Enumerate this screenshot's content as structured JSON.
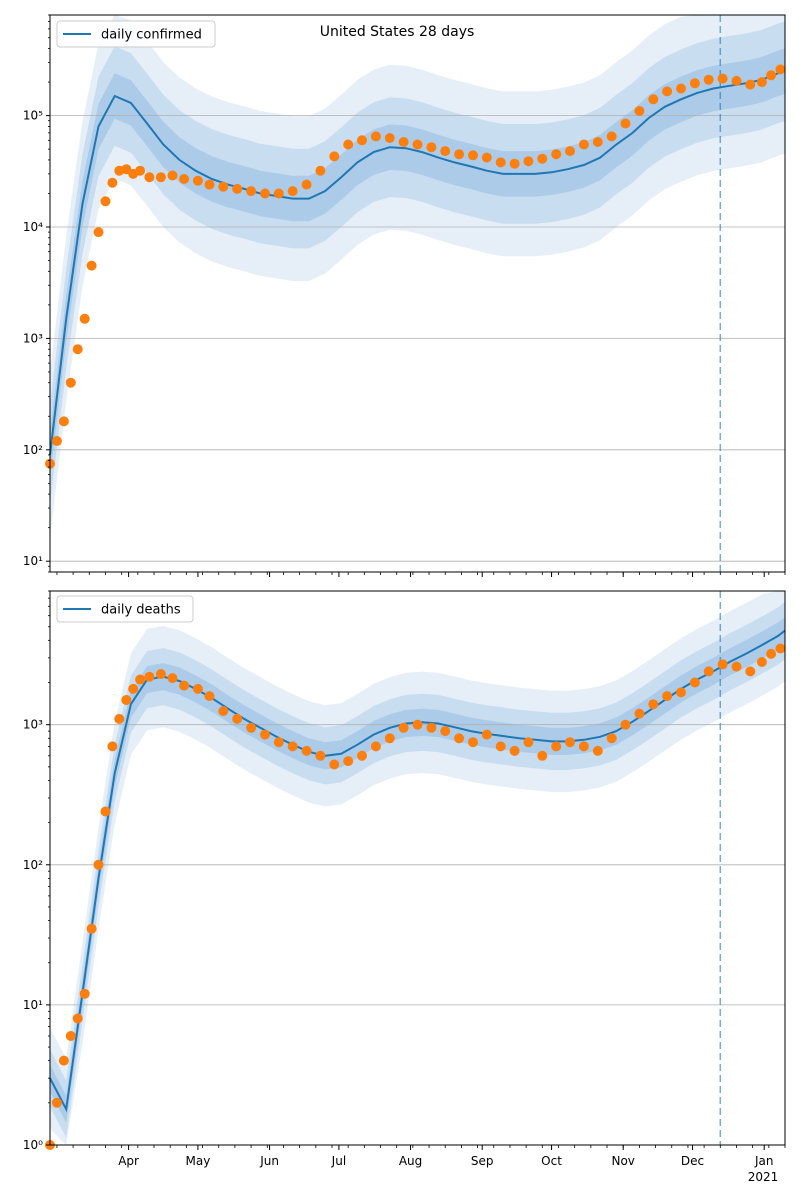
{
  "chart_data": [
    {
      "type": "line",
      "title": "United States 28 days",
      "xlabel": "",
      "ylabel": "",
      "yscale": "log",
      "ylim": [
        8,
        800000
      ],
      "yticks": [
        {
          "value": 10,
          "label": "10¹"
        },
        {
          "value": 100,
          "label": "10²"
        },
        {
          "value": 1000,
          "label": "10³"
        },
        {
          "value": 10000,
          "label": "10⁴"
        },
        {
          "value": 100000,
          "label": "10⁵"
        }
      ],
      "grid": "horizontal",
      "legend": {
        "placement": "top-left",
        "entries": [
          "daily confirmed"
        ]
      },
      "forecast_start": "2020-12-13",
      "series": [
        {
          "name": "daily confirmed",
          "kind": "model-median",
          "color": "#1f77b4",
          "x": [
            "2020-02-27",
            "2020-03-05",
            "2020-03-12",
            "2020-03-19",
            "2020-03-26",
            "2020-04-02",
            "2020-04-09",
            "2020-04-16",
            "2020-04-23",
            "2020-04-30",
            "2020-05-07",
            "2020-05-14",
            "2020-05-21",
            "2020-05-28",
            "2020-06-04",
            "2020-06-11",
            "2020-06-18",
            "2020-06-25",
            "2020-07-02",
            "2020-07-09",
            "2020-07-16",
            "2020-07-23",
            "2020-07-30",
            "2020-08-06",
            "2020-08-13",
            "2020-08-20",
            "2020-08-27",
            "2020-09-03",
            "2020-09-10",
            "2020-09-17",
            "2020-09-24",
            "2020-10-01",
            "2020-10-08",
            "2020-10-15",
            "2020-10-22",
            "2020-10-29",
            "2020-11-05",
            "2020-11-12",
            "2020-11-19",
            "2020-11-26",
            "2020-12-03",
            "2020-12-10",
            "2020-12-17",
            "2020-12-24",
            "2020-12-31",
            "2021-01-07",
            "2021-01-10"
          ],
          "y": [
            90,
            1500,
            16000,
            80000,
            150000,
            130000,
            85000,
            55000,
            40000,
            32000,
            27000,
            24000,
            22000,
            20000,
            19000,
            18000,
            18000,
            21000,
            28000,
            38000,
            47000,
            52000,
            51000,
            47000,
            42000,
            38000,
            35000,
            32000,
            30000,
            30000,
            30000,
            31000,
            33000,
            36000,
            42000,
            55000,
            70000,
            95000,
            120000,
            140000,
            160000,
            175000,
            185000,
            195000,
            210000,
            240000,
            250000
          ]
        },
        {
          "name": "",
          "kind": "observed",
          "color": "#ff7f0e",
          "x": [
            "2020-02-27",
            "2020-03-01",
            "2020-03-04",
            "2020-03-07",
            "2020-03-10",
            "2020-03-13",
            "2020-03-16",
            "2020-03-19",
            "2020-03-22",
            "2020-03-25",
            "2020-03-28",
            "2020-03-31",
            "2020-04-03",
            "2020-04-06",
            "2020-04-10",
            "2020-04-15",
            "2020-04-20",
            "2020-04-25",
            "2020-05-01",
            "2020-05-06",
            "2020-05-12",
            "2020-05-18",
            "2020-05-24",
            "2020-05-30",
            "2020-06-05",
            "2020-06-11",
            "2020-06-17",
            "2020-06-23",
            "2020-06-29",
            "2020-07-05",
            "2020-07-11",
            "2020-07-17",
            "2020-07-23",
            "2020-07-29",
            "2020-08-04",
            "2020-08-10",
            "2020-08-16",
            "2020-08-22",
            "2020-08-28",
            "2020-09-03",
            "2020-09-09",
            "2020-09-15",
            "2020-09-21",
            "2020-09-27",
            "2020-10-03",
            "2020-10-09",
            "2020-10-15",
            "2020-10-21",
            "2020-10-27",
            "2020-11-02",
            "2020-11-08",
            "2020-11-14",
            "2020-11-20",
            "2020-11-26",
            "2020-12-02",
            "2020-12-08",
            "2020-12-14",
            "2020-12-20",
            "2020-12-26",
            "2020-12-31",
            "2021-01-04",
            "2021-01-08"
          ],
          "y": [
            75,
            120,
            180,
            400,
            800,
            1500,
            4500,
            9000,
            17000,
            25000,
            32000,
            33000,
            30000,
            32000,
            28000,
            28000,
            29000,
            27000,
            26000,
            24000,
            23000,
            22000,
            21000,
            20000,
            20000,
            21000,
            24000,
            32000,
            43000,
            55000,
            60000,
            65000,
            63000,
            58000,
            55000,
            52000,
            48000,
            45000,
            44000,
            42000,
            38000,
            37000,
            39000,
            41000,
            45000,
            48000,
            55000,
            58000,
            65000,
            85000,
            110000,
            140000,
            165000,
            175000,
            195000,
            210000,
            215000,
            205000,
            190000,
            200000,
            230000,
            260000
          ]
        }
      ]
    },
    {
      "type": "line",
      "title": "",
      "xlabel": "",
      "ylabel": "",
      "yscale": "log",
      "ylim": [
        1,
        9000
      ],
      "yticks": [
        {
          "value": 1,
          "label": "10⁰"
        },
        {
          "value": 10,
          "label": "10¹"
        },
        {
          "value": 100,
          "label": "10²"
        },
        {
          "value": 1000,
          "label": "10³"
        }
      ],
      "xticks": [
        {
          "date": "2020-04-01",
          "label": "Apr"
        },
        {
          "date": "2020-05-01",
          "label": "May"
        },
        {
          "date": "2020-06-01",
          "label": "Jun"
        },
        {
          "date": "2020-07-01",
          "label": "Jul"
        },
        {
          "date": "2020-08-01",
          "label": "Aug"
        },
        {
          "date": "2020-09-01",
          "label": "Sep"
        },
        {
          "date": "2020-10-01",
          "label": "Oct"
        },
        {
          "date": "2020-11-01",
          "label": "Nov"
        },
        {
          "date": "2020-12-01",
          "label": "Dec"
        },
        {
          "date": "2021-01-01",
          "label": "Jan"
        }
      ],
      "x_year_label": "2021",
      "grid": "horizontal",
      "legend": {
        "placement": "top-left",
        "entries": [
          "daily deaths"
        ]
      },
      "forecast_start": "2020-12-13",
      "series": [
        {
          "name": "daily deaths",
          "kind": "model-median",
          "color": "#1f77b4",
          "x": [
            "2020-02-27",
            "2020-03-05",
            "2020-03-12",
            "2020-03-19",
            "2020-03-26",
            "2020-04-02",
            "2020-04-09",
            "2020-04-16",
            "2020-04-23",
            "2020-04-30",
            "2020-05-07",
            "2020-05-14",
            "2020-05-21",
            "2020-05-28",
            "2020-06-04",
            "2020-06-11",
            "2020-06-18",
            "2020-06-25",
            "2020-07-02",
            "2020-07-09",
            "2020-07-16",
            "2020-07-23",
            "2020-07-30",
            "2020-08-06",
            "2020-08-13",
            "2020-08-20",
            "2020-08-27",
            "2020-09-03",
            "2020-09-10",
            "2020-09-17",
            "2020-09-24",
            "2020-10-01",
            "2020-10-08",
            "2020-10-15",
            "2020-10-22",
            "2020-10-29",
            "2020-11-05",
            "2020-11-12",
            "2020-11-19",
            "2020-11-26",
            "2020-12-03",
            "2020-12-10",
            "2020-12-17",
            "2020-12-24",
            "2020-12-31",
            "2021-01-07",
            "2021-01-10"
          ],
          "y": [
            3,
            1.8,
            12,
            80,
            450,
            1400,
            2100,
            2200,
            2050,
            1800,
            1550,
            1300,
            1100,
            950,
            820,
            720,
            640,
            600,
            620,
            720,
            850,
            950,
            1020,
            1040,
            1020,
            960,
            900,
            860,
            830,
            800,
            780,
            760,
            760,
            780,
            820,
            900,
            1050,
            1250,
            1500,
            1800,
            2100,
            2400,
            2800,
            3200,
            3700,
            4300,
            4700
          ]
        },
        {
          "name": "",
          "kind": "observed",
          "color": "#ff7f0e",
          "x": [
            "2020-02-27",
            "2020-03-01",
            "2020-03-04",
            "2020-03-07",
            "2020-03-10",
            "2020-03-13",
            "2020-03-16",
            "2020-03-19",
            "2020-03-22",
            "2020-03-25",
            "2020-03-28",
            "2020-03-31",
            "2020-04-03",
            "2020-04-06",
            "2020-04-10",
            "2020-04-15",
            "2020-04-20",
            "2020-04-25",
            "2020-05-01",
            "2020-05-06",
            "2020-05-12",
            "2020-05-18",
            "2020-05-24",
            "2020-05-30",
            "2020-06-05",
            "2020-06-11",
            "2020-06-17",
            "2020-06-23",
            "2020-06-29",
            "2020-07-05",
            "2020-07-11",
            "2020-07-17",
            "2020-07-23",
            "2020-07-29",
            "2020-08-04",
            "2020-08-10",
            "2020-08-16",
            "2020-08-22",
            "2020-08-28",
            "2020-09-03",
            "2020-09-09",
            "2020-09-15",
            "2020-09-21",
            "2020-09-27",
            "2020-10-03",
            "2020-10-09",
            "2020-10-15",
            "2020-10-21",
            "2020-10-27",
            "2020-11-02",
            "2020-11-08",
            "2020-11-14",
            "2020-11-20",
            "2020-11-26",
            "2020-12-02",
            "2020-12-08",
            "2020-12-14",
            "2020-12-20",
            "2020-12-26",
            "2020-12-31",
            "2021-01-04",
            "2021-01-08"
          ],
          "y": [
            1,
            2,
            4,
            6,
            8,
            12,
            35,
            100,
            240,
            700,
            1100,
            1500,
            1800,
            2100,
            2200,
            2300,
            2150,
            1900,
            1800,
            1600,
            1250,
            1100,
            950,
            850,
            750,
            700,
            650,
            600,
            520,
            550,
            600,
            700,
            800,
            950,
            1000,
            950,
            900,
            800,
            750,
            850,
            700,
            650,
            750,
            600,
            700,
            750,
            700,
            650,
            800,
            1000,
            1200,
            1400,
            1600,
            1700,
            2000,
            2400,
            2700,
            2600,
            2400,
            2800,
            3200,
            3500
          ]
        }
      ]
    }
  ]
}
